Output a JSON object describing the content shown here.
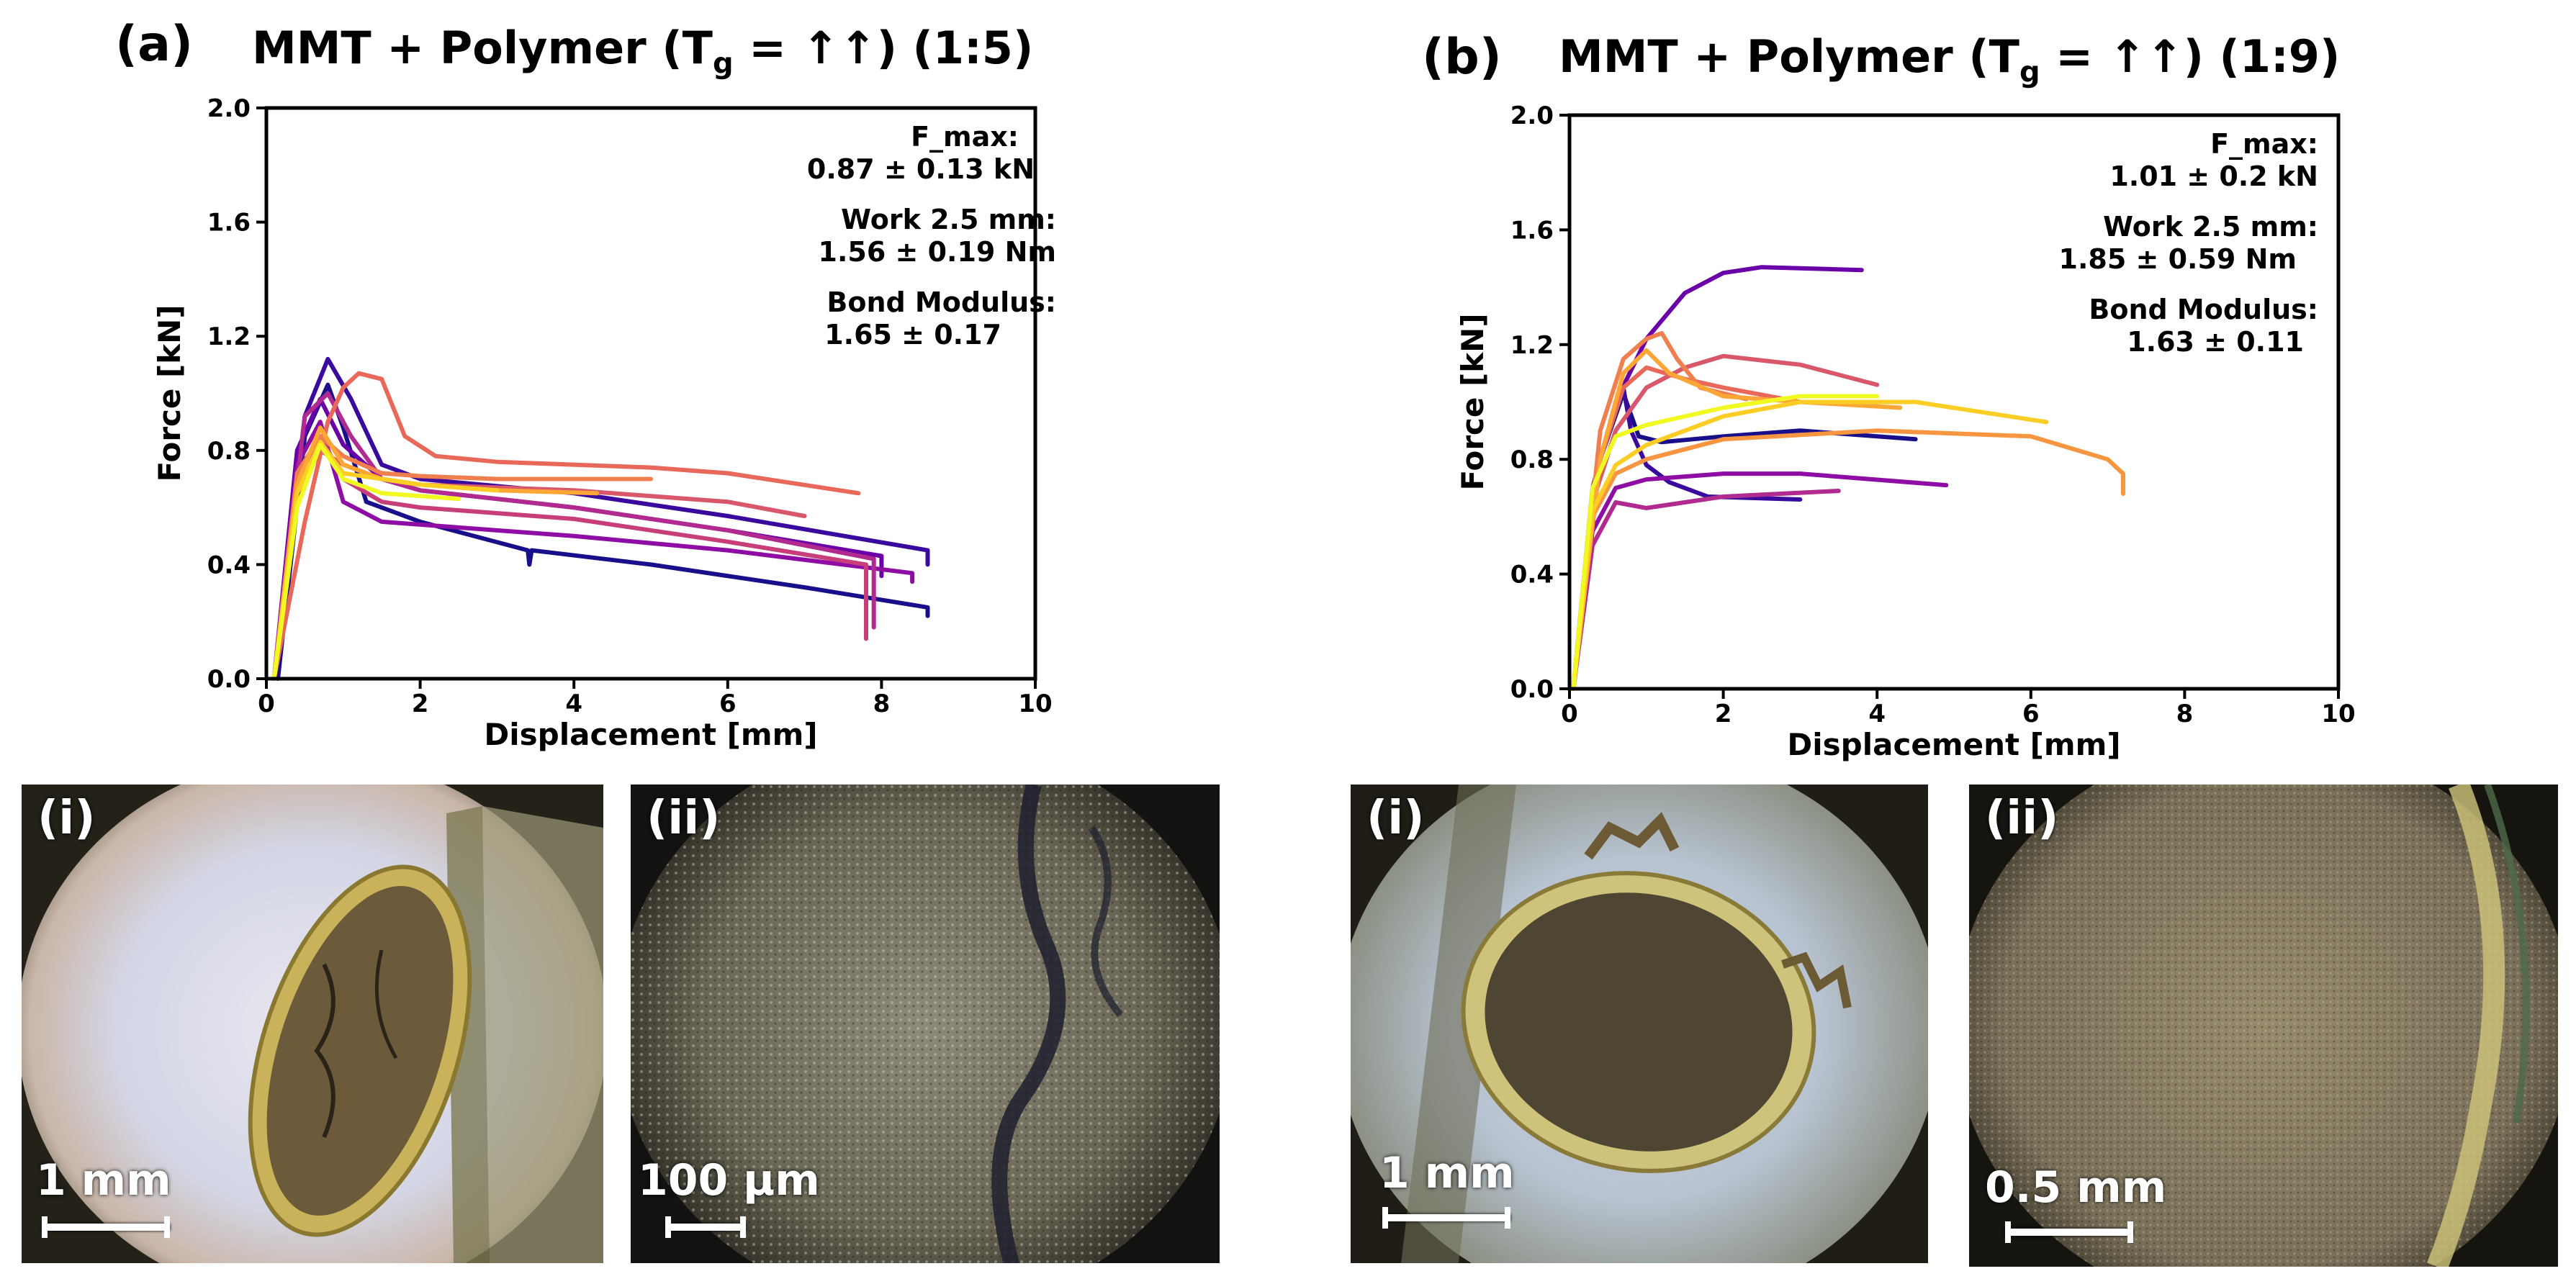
{
  "panel_a": {
    "label": "(a)",
    "title_main": "MMT + Polymer (T",
    "title_sub": "g",
    "title_end": " = ↑↑) (1:5)",
    "annotations": [
      "F_max:",
      "0.87 ± 0.13  kN",
      "Work 2.5 mm:",
      "1.56 ± 0.19 Nm",
      "Bond Modulus:",
      "1.65 ± 0.17"
    ]
  },
  "panel_b": {
    "label": "(b)",
    "title_main": "MMT + Polymer (T",
    "title_sub": "g",
    "title_end": " = ↑↑) (1:9)",
    "annotations": [
      "F_max:",
      "1.01 ± 0.2  kN",
      "Work 2.5 mm:",
      "1.85 ± 0.59 Nm",
      "Bond Modulus:",
      "1.63 ± 0.11"
    ]
  },
  "photos": {
    "a_i": {
      "label": "(i)",
      "scale": "1 mm"
    },
    "a_ii": {
      "label": "(ii)",
      "scale": "100 µm"
    },
    "b_i": {
      "label": "(i)",
      "scale": "1 mm"
    },
    "b_ii": {
      "label": "(ii)",
      "scale": "0.5 mm"
    }
  },
  "chart_data": [
    {
      "type": "line",
      "title": "MMT + Polymer (Tg = ↑↑) (1:5)",
      "xlabel": "Displacement [mm]",
      "ylabel": "Force [kN]",
      "xlim": [
        0,
        10
      ],
      "ylim": [
        0,
        2.0
      ],
      "xticks": [
        0,
        2,
        4,
        6,
        8,
        10
      ],
      "yticks": [
        0.0,
        0.4,
        0.8,
        1.2,
        1.6,
        2.0
      ],
      "series": [
        {
          "name": "s1",
          "color": "#1a0f8a",
          "x": [
            0.15,
            0.5,
            0.8,
            1.0,
            1.3,
            2,
            3.4,
            3.42,
            3.45,
            5,
            7,
            8.6,
            8.6
          ],
          "y": [
            0.0,
            0.85,
            1.03,
            0.88,
            0.62,
            0.55,
            0.45,
            0.4,
            0.45,
            0.4,
            0.32,
            0.25,
            0.22
          ]
        },
        {
          "name": "s2",
          "color": "#3a0a9e",
          "x": [
            0.1,
            0.5,
            0.8,
            1.1,
            1.5,
            2,
            4,
            6,
            8.6,
            8.6
          ],
          "y": [
            0.0,
            0.92,
            1.12,
            0.98,
            0.75,
            0.7,
            0.65,
            0.57,
            0.45,
            0.4
          ]
        },
        {
          "name": "s3",
          "color": "#6a00a8",
          "x": [
            0.1,
            0.4,
            0.7,
            1.0,
            1.5,
            2,
            4,
            6,
            8.0,
            8.0
          ],
          "y": [
            0.0,
            0.8,
            0.98,
            0.82,
            0.7,
            0.66,
            0.6,
            0.52,
            0.43,
            0.36
          ]
        },
        {
          "name": "s4",
          "color": "#8e0da4",
          "x": [
            0.1,
            0.4,
            0.7,
            1.0,
            1.5,
            2,
            4,
            6,
            8.4,
            8.4
          ],
          "y": [
            0.0,
            0.75,
            0.9,
            0.62,
            0.55,
            0.54,
            0.5,
            0.45,
            0.37,
            0.34
          ]
        },
        {
          "name": "s5",
          "color": "#b12a90",
          "x": [
            0.1,
            0.5,
            0.8,
            1.1,
            1.5,
            2,
            4,
            6,
            7.9,
            7.9
          ],
          "y": [
            0.0,
            0.92,
            1.0,
            0.85,
            0.7,
            0.66,
            0.6,
            0.52,
            0.42,
            0.18
          ]
        },
        {
          "name": "s6",
          "color": "#c73e7a",
          "x": [
            0.1,
            0.4,
            0.7,
            1.0,
            1.5,
            2,
            4,
            6,
            7.8,
            7.8
          ],
          "y": [
            0.0,
            0.7,
            0.85,
            0.7,
            0.62,
            0.6,
            0.56,
            0.48,
            0.4,
            0.14
          ]
        },
        {
          "name": "s7",
          "color": "#d8576b",
          "x": [
            0.1,
            0.4,
            0.7,
            1.0,
            1.5,
            2,
            4,
            6,
            7.0
          ],
          "y": [
            0.0,
            0.65,
            0.8,
            0.75,
            0.7,
            0.68,
            0.66,
            0.62,
            0.57
          ]
        },
        {
          "name": "s8",
          "color": "#e8685a",
          "x": [
            0.1,
            0.5,
            0.8,
            1.0,
            1.2,
            1.5,
            1.8,
            2.2,
            3,
            5,
            6,
            7.7
          ],
          "y": [
            0.0,
            0.55,
            0.9,
            1.02,
            1.07,
            1.05,
            0.85,
            0.78,
            0.76,
            0.74,
            0.72,
            0.65
          ]
        },
        {
          "name": "s9",
          "color": "#f07f4f",
          "x": [
            0.1,
            0.4,
            0.7,
            1.0,
            1.5,
            2,
            3,
            5.0
          ],
          "y": [
            0.0,
            0.72,
            0.85,
            0.78,
            0.72,
            0.71,
            0.7,
            0.7
          ]
        },
        {
          "name": "s10",
          "color": "#fca636",
          "x": [
            0.1,
            0.4,
            0.7,
            1.0,
            1.5,
            2,
            3,
            4.3
          ],
          "y": [
            0.0,
            0.68,
            0.88,
            0.75,
            0.7,
            0.68,
            0.66,
            0.65
          ]
        },
        {
          "name": "s11",
          "color": "#fcce25",
          "x": [
            0.1,
            0.4,
            0.7,
            1.0,
            1.5,
            2,
            3.0
          ],
          "y": [
            0.0,
            0.65,
            0.83,
            0.72,
            0.7,
            0.68,
            0.66
          ]
        },
        {
          "name": "s12",
          "color": "#f0f921",
          "x": [
            0.1,
            0.4,
            0.7,
            1.0,
            1.5,
            2.5
          ],
          "y": [
            0.0,
            0.6,
            0.82,
            0.7,
            0.65,
            0.63
          ]
        }
      ]
    },
    {
      "type": "line",
      "title": "MMT + Polymer (Tg = ↑↑) (1:9)",
      "xlabel": "Displacement [mm]",
      "ylabel": "Force [kN]",
      "xlim": [
        0,
        10
      ],
      "ylim": [
        0,
        2.0
      ],
      "xticks": [
        0,
        2,
        4,
        6,
        8,
        10
      ],
      "yticks": [
        0.0,
        0.4,
        0.8,
        1.2,
        1.6,
        2.0
      ],
      "series": [
        {
          "name": "s1",
          "color": "#1a0f8a",
          "x": [
            0.05,
            0.4,
            0.7,
            0.9,
            1.2,
            2,
            3,
            4.5
          ],
          "y": [
            0.0,
            0.8,
            1.03,
            0.88,
            0.86,
            0.88,
            0.9,
            0.87
          ]
        },
        {
          "name": "s2",
          "color": "#3a0a9e",
          "x": [
            0.05,
            0.4,
            0.7,
            0.8,
            1.0,
            1.3,
            1.8,
            3.0
          ],
          "y": [
            0.0,
            0.8,
            1.05,
            0.9,
            0.78,
            0.72,
            0.67,
            0.66
          ]
        },
        {
          "name": "s3",
          "color": "#6a00a8",
          "x": [
            0.05,
            0.3,
            0.6,
            1.0,
            1.5,
            2.0,
            2.5,
            3.8
          ],
          "y": [
            0.0,
            0.7,
            1.0,
            1.22,
            1.38,
            1.45,
            1.47,
            1.46
          ]
        },
        {
          "name": "s4",
          "color": "#8e0da4",
          "x": [
            0.05,
            0.3,
            0.6,
            1.0,
            2,
            3,
            4.9
          ],
          "y": [
            0.0,
            0.55,
            0.7,
            0.73,
            0.75,
            0.75,
            0.71
          ]
        },
        {
          "name": "s5",
          "color": "#b12a90",
          "x": [
            0.05,
            0.3,
            0.6,
            1.0,
            2,
            3.5
          ],
          "y": [
            0.0,
            0.5,
            0.65,
            0.63,
            0.67,
            0.69
          ]
        },
        {
          "name": "s6",
          "color": "#d8576b",
          "x": [
            0.05,
            0.3,
            0.6,
            1.0,
            1.5,
            2,
            3,
            4.0
          ],
          "y": [
            0.0,
            0.65,
            0.9,
            1.05,
            1.12,
            1.16,
            1.13,
            1.06
          ]
        },
        {
          "name": "s7",
          "color": "#e8685a",
          "x": [
            0.05,
            0.4,
            0.7,
            1.0,
            1.5,
            2,
            3.0
          ],
          "y": [
            0.0,
            0.8,
            1.05,
            1.12,
            1.08,
            1.05,
            1.0
          ]
        },
        {
          "name": "s8",
          "color": "#f07f4f",
          "x": [
            0.05,
            0.4,
            0.7,
            1.0,
            1.2,
            1.4,
            1.7,
            2.3
          ],
          "y": [
            0.0,
            0.9,
            1.15,
            1.22,
            1.24,
            1.15,
            1.05,
            1.01
          ]
        },
        {
          "name": "s9",
          "color": "#f89540",
          "x": [
            0.05,
            0.3,
            0.6,
            1.0,
            2,
            4,
            6,
            7.0,
            7.2,
            7.2
          ],
          "y": [
            0.0,
            0.6,
            0.75,
            0.8,
            0.87,
            0.9,
            0.88,
            0.8,
            0.75,
            0.68
          ]
        },
        {
          "name": "s10",
          "color": "#fca636",
          "x": [
            0.05,
            0.4,
            0.7,
            1.0,
            1.3,
            2,
            3,
            4.3
          ],
          "y": [
            0.0,
            0.8,
            1.1,
            1.18,
            1.1,
            1.02,
            1.0,
            0.98
          ]
        },
        {
          "name": "s11",
          "color": "#fcce25",
          "x": [
            0.05,
            0.3,
            0.6,
            1.0,
            2,
            3,
            4.5,
            6.2
          ],
          "y": [
            0.0,
            0.62,
            0.78,
            0.85,
            0.95,
            1.0,
            1.0,
            0.93
          ]
        },
        {
          "name": "s12",
          "color": "#f0f921",
          "x": [
            0.05,
            0.3,
            0.6,
            1.0,
            2,
            3,
            4.0
          ],
          "y": [
            0.0,
            0.7,
            0.88,
            0.92,
            0.98,
            1.02,
            1.02
          ]
        }
      ]
    }
  ]
}
